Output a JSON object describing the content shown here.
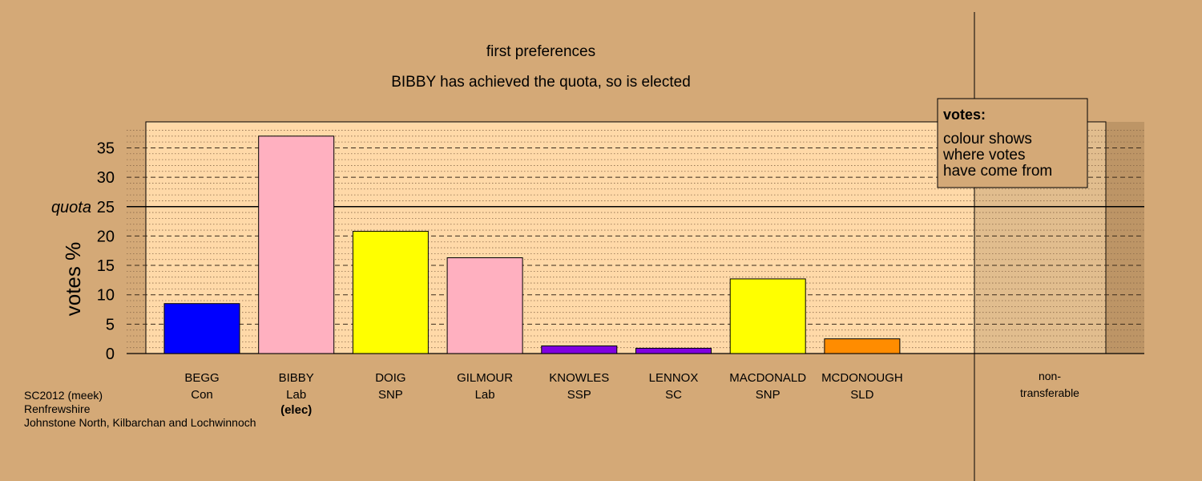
{
  "chart_data": {
    "type": "bar",
    "title": "first preferences",
    "subtitle": "BIBBY has achieved the quota, so is elected",
    "ylabel": "votes %",
    "ylim": [
      0,
      38.5
    ],
    "yticks": [
      0,
      5,
      10,
      15,
      20,
      25,
      30,
      35
    ],
    "quota": 25,
    "quota_label": "quota",
    "grid": true,
    "categories": [
      {
        "name": "BEGG",
        "party": "Con",
        "value": 8.5,
        "color": "#0000ff",
        "note": ""
      },
      {
        "name": "BIBBY",
        "party": "Lab",
        "value": 37.0,
        "color": "#ffb0c0",
        "note": "(elec)"
      },
      {
        "name": "DOIG",
        "party": "SNP",
        "value": 20.8,
        "color": "#ffff00",
        "note": ""
      },
      {
        "name": "GILMOUR",
        "party": "Lab",
        "value": 16.3,
        "color": "#ffb0c0",
        "note": ""
      },
      {
        "name": "KNOWLES",
        "party": "SSP",
        "value": 1.3,
        "color": "#8000e0",
        "note": ""
      },
      {
        "name": "LENNOX",
        "party": "SC",
        "value": 0.9,
        "color": "#8000e0",
        "note": ""
      },
      {
        "name": "MACDONALD",
        "party": "SNP",
        "value": 12.7,
        "color": "#ffff00",
        "note": ""
      },
      {
        "name": "MCDONOUGH",
        "party": "SLD",
        "value": 2.5,
        "color": "#ff8c00",
        "note": ""
      }
    ],
    "nontransferable": {
      "label_line1": "non-",
      "label_line2": "transferable",
      "value": 0
    },
    "legend": {
      "title": "votes:",
      "lines": [
        "colour shows",
        "where votes",
        "have come from"
      ],
      "placement": "top-right"
    }
  },
  "footer": {
    "line1": "SC2012 (meek)",
    "line2": "Renfrewshire",
    "line3": "Johnstone North, Kilbarchan and Lochwinnoch"
  },
  "colors": {
    "background": "#d4a977",
    "plot_area": "#ffd9a8"
  }
}
